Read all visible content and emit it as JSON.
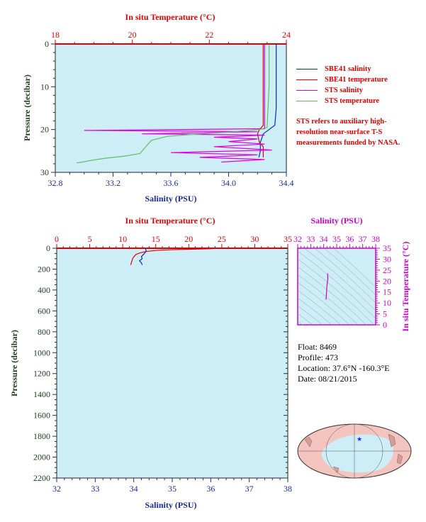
{
  "top_chart": {
    "top_axis_label": "In situ Temperature (°C)",
    "bottom_axis_label": "Salinity (PSU)",
    "y_axis_label": "Pressure (decibar)",
    "top_ticks": [
      "18",
      "20",
      "22",
      "24"
    ],
    "bottom_ticks": [
      "32.8",
      "33.2",
      "33.6",
      "34.0",
      "34.4"
    ],
    "y_ticks": [
      "0",
      "10",
      "20",
      "30"
    ]
  },
  "legend": {
    "items": [
      {
        "label": "SBE41 salinity",
        "color": "#0030c0"
      },
      {
        "label": "SBE41 temperature",
        "color": "#e00000"
      },
      {
        "label": "STS salinity",
        "color": "#e000e0"
      },
      {
        "label": "STS temperature",
        "color": "#60c060"
      }
    ],
    "note": "STS refers to auxiliary high-resolution near-surface T-S measurements funded by NASA."
  },
  "bottom_chart": {
    "top_axis_label": "In situ Temperature (°C)",
    "bottom_axis_label": "Salinity (PSU)",
    "y_axis_label": "Pressure (decibar)",
    "top_ticks": [
      "0",
      "5",
      "10",
      "15",
      "20",
      "25",
      "30",
      "35"
    ],
    "bottom_ticks": [
      "32",
      "33",
      "34",
      "35",
      "36",
      "37",
      "38"
    ],
    "y_ticks": [
      "0",
      "200",
      "400",
      "600",
      "800",
      "1000",
      "1200",
      "1400",
      "1600",
      "1800",
      "2000",
      "2200"
    ]
  },
  "ts_chart": {
    "top_axis_label": "Salinity (PSU)",
    "right_axis_label": "In situ Temperature (°C)",
    "top_ticks": [
      "32",
      "33",
      "34",
      "35",
      "36",
      "37",
      "38"
    ],
    "right_ticks": [
      "0",
      "5",
      "10",
      "15",
      "20",
      "25",
      "30",
      "35"
    ]
  },
  "info": {
    "float": "Float:  8469",
    "profile": "Profile:  473",
    "location": "Location:  37.6°N  -160.3°E",
    "date": "Date:  08/21/2015"
  },
  "chart_data": [
    {
      "type": "line",
      "title": "",
      "xlabel": "Salinity (PSU)",
      "x2label": "In situ Temperature (°C)",
      "ylabel": "Pressure (decibar)",
      "xlim": [
        32.8,
        34.4
      ],
      "x2lim": [
        18,
        24
      ],
      "ylim": [
        30,
        0
      ],
      "series": [
        {
          "name": "SBE41 salinity",
          "axis": "salinity",
          "points": [
            [
              34.33,
              0
            ],
            [
              34.33,
              5
            ],
            [
              34.33,
              10
            ],
            [
              34.33,
              15
            ],
            [
              34.32,
              19
            ],
            [
              34.28,
              20
            ],
            [
              34.24,
              21
            ],
            [
              34.22,
              23
            ],
            [
              34.22,
              25
            ],
            [
              34.21,
              26.5
            ]
          ]
        },
        {
          "name": "SBE41 temperature",
          "axis": "temperature",
          "points": [
            [
              23.4,
              0
            ],
            [
              23.4,
              5
            ],
            [
              23.4,
              10
            ],
            [
              23.4,
              15
            ],
            [
              23.4,
              19
            ],
            [
              23.3,
              20
            ],
            [
              23.25,
              21
            ],
            [
              23.3,
              23
            ],
            [
              23.4,
              24
            ],
            [
              23.4,
              26.5
            ]
          ]
        },
        {
          "name": "STS salinity",
          "axis": "salinity",
          "points": [
            [
              34.25,
              0.2
            ],
            [
              34.25,
              10
            ],
            [
              34.25,
              19.8
            ],
            [
              33.0,
              20.2
            ],
            [
              34.2,
              20.5
            ],
            [
              33.4,
              21.0
            ],
            [
              34.25,
              21.3
            ],
            [
              33.9,
              21.8
            ],
            [
              34.2,
              22.2
            ],
            [
              34.0,
              22.8
            ],
            [
              34.25,
              23.4
            ],
            [
              33.9,
              24.0
            ],
            [
              34.3,
              24.8
            ],
            [
              33.6,
              25.4
            ],
            [
              34.2,
              25.9
            ],
            [
              33.8,
              26.5
            ],
            [
              34.25,
              27.0
            ],
            [
              33.95,
              27.6
            ]
          ]
        },
        {
          "name": "STS temperature",
          "axis": "temperature",
          "points": [
            [
              23.55,
              0.3
            ],
            [
              23.55,
              10
            ],
            [
              23.5,
              19.5
            ],
            [
              23.3,
              20.0
            ],
            [
              22.5,
              20.6
            ],
            [
              21.6,
              21.1
            ],
            [
              20.9,
              21.6
            ],
            [
              20.5,
              22.5
            ],
            [
              20.35,
              24.0
            ],
            [
              20.2,
              25.6
            ],
            [
              19.8,
              26.2
            ],
            [
              19.3,
              26.7
            ],
            [
              19.0,
              27.1
            ],
            [
              18.7,
              27.6
            ],
            [
              18.55,
              27.8
            ]
          ]
        }
      ]
    },
    {
      "type": "line",
      "title": "",
      "xlabel": "Salinity (PSU)",
      "x2label": "In situ Temperature (°C)",
      "ylabel": "Pressure (decibar)",
      "xlim": [
        32,
        38
      ],
      "x2lim": [
        0,
        35
      ],
      "ylim": [
        2200,
        0
      ],
      "series": [
        {
          "name": "SBE41 salinity",
          "axis": "salinity",
          "points": [
            [
              34.3,
              0
            ],
            [
              34.32,
              20
            ],
            [
              34.3,
              40
            ],
            [
              34.25,
              60
            ],
            [
              34.2,
              80
            ],
            [
              34.22,
              100
            ],
            [
              34.15,
              120
            ],
            [
              34.2,
              140
            ],
            [
              34.22,
              160
            ]
          ]
        },
        {
          "name": "SBE41 temperature",
          "axis": "temperature",
          "points": [
            [
              23.8,
              0
            ],
            [
              23.5,
              5
            ],
            [
              20.0,
              10
            ],
            [
              17.0,
              15
            ],
            [
              15.0,
              22
            ],
            [
              13.5,
              32
            ],
            [
              12.6,
              45
            ],
            [
              12.0,
              60
            ],
            [
              11.7,
              80
            ],
            [
              11.5,
              100
            ],
            [
              11.4,
              120
            ],
            [
              11.3,
              140
            ],
            [
              11.2,
              160
            ]
          ]
        }
      ]
    },
    {
      "type": "line",
      "title": "",
      "xlabel": "Salinity (PSU)",
      "ylabel": "In situ Temperature (°C)",
      "xlim": [
        32,
        38
      ],
      "ylim": [
        0,
        35
      ],
      "series": [
        {
          "points": [
            [
              34.3,
              23.5
            ],
            [
              34.32,
              21
            ],
            [
              34.25,
              18
            ],
            [
              34.22,
              15
            ],
            [
              34.2,
              13
            ],
            [
              34.18,
              11.5
            ]
          ]
        }
      ]
    }
  ]
}
